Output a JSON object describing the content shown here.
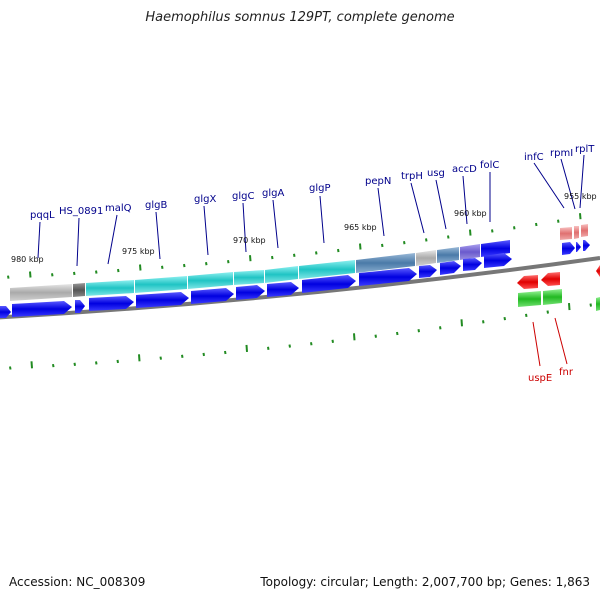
{
  "title": "Haemophilus somnus 129PT, complete genome",
  "footer": {
    "accession": "Accession: NC_008309",
    "stats": "Topology: circular; Length: 2,007,700 bp; Genes: 1,863"
  },
  "scale_labels": [
    "980 kbp",
    "975 kbp",
    "970 kbp",
    "965 kbp",
    "960 kbp",
    "955 kbp"
  ],
  "genes_top": [
    "pqqL",
    "HS_0891",
    "malQ",
    "glgB",
    "glgX",
    "glgC",
    "glgA",
    "glgP",
    "pepN",
    "trpH",
    "usg",
    "accD",
    "folC",
    "infC",
    "rpmI",
    "rplT"
  ],
  "genes_bottom": [
    "uspE",
    "fnr"
  ],
  "colors": {
    "forward_arrow": "#0000ee",
    "reverse_arrow": "#ee0000",
    "rna_arrow": "#22bb22",
    "label_top": "#00008b",
    "label_bottom": "#cc0000",
    "tick": "#228b22",
    "cyan_segment": "#2ec8c8",
    "steel_segment": "#4f7fae",
    "purple_segment": "#6a5acd",
    "pink_segment": "#e88888"
  }
}
